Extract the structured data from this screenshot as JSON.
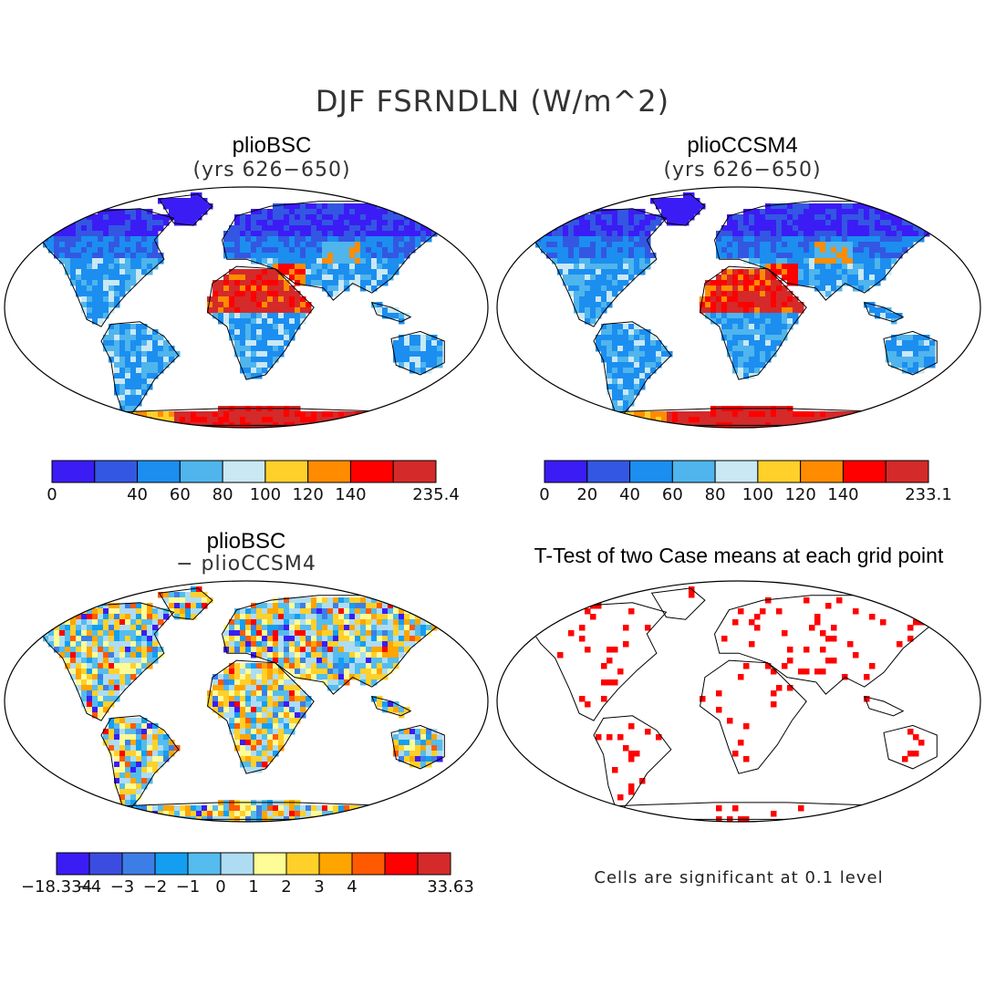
{
  "figure": {
    "title": "DJF FSRNDLN (W/m^2)",
    "note": "Cells are significant at 0.1 level"
  },
  "colors": {
    "seq": [
      "#3b1cf5",
      "#3357e2",
      "#1b8ef0",
      "#4fb5ec",
      "#c9e8f4",
      "#ffd02a",
      "#ff8c00",
      "#ff0000",
      "#d42a2a"
    ],
    "diff": [
      "#3b1cf5",
      "#3a4de0",
      "#3d7ee6",
      "#149ef2",
      "#54bcee",
      "#aedcf2",
      "#fdfc96",
      "#ffd02a",
      "#ffa500",
      "#ff5a00",
      "#ff0000",
      "#d42a2a"
    ],
    "sig": "#ff0000"
  },
  "chart_data": [
    {
      "type": "heatmap",
      "title": "plioBSC",
      "subtitle": "(yrs 626−650)",
      "colorbar_labels": [
        "0",
        "",
        "40",
        "60",
        "80",
        "100",
        "120",
        "140",
        "",
        "235.4"
      ],
      "range": [
        0,
        235.4
      ]
    },
    {
      "type": "heatmap",
      "title": "plioCCSM4",
      "subtitle": "(yrs 626−650)",
      "colorbar_labels": [
        "0",
        "20",
        "40",
        "60",
        "80",
        "100",
        "120",
        "140",
        "",
        "233.1"
      ],
      "range": [
        0,
        233.1
      ]
    },
    {
      "type": "heatmap",
      "title": "plioBSC",
      "subtitle": "− plioCCSM4",
      "colorbar_labels": [
        "−18.334",
        "−4",
        "−3",
        "−2",
        "−1",
        "0",
        "1",
        "2",
        "3",
        "4",
        "",
        "",
        "33.63"
      ],
      "range": [
        -18.334,
        33.63
      ]
    },
    {
      "type": "heatmap",
      "title": "T-Test of two Case means at each grid point",
      "subtitle": "",
      "significance_level": 0.1
    }
  ]
}
